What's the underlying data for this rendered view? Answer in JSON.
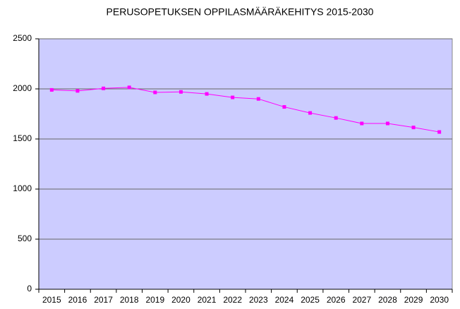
{
  "chart_data": {
    "type": "line",
    "title": "PERUSOPETUKSEN OPPILASMÄÄRÄKEHITYS 2015-2030",
    "categories": [
      "2015",
      "2016",
      "2017",
      "2018",
      "2019",
      "2020",
      "2021",
      "2022",
      "2023",
      "2024",
      "2025",
      "2026",
      "2027",
      "2028",
      "2029",
      "2030"
    ],
    "series": [
      {
        "color": "#ff00ff",
        "values": [
          1990,
          1980,
          2005,
          2015,
          1965,
          1970,
          1950,
          1915,
          1900,
          1820,
          1760,
          1710,
          1655,
          1655,
          1615,
          1570
        ]
      }
    ],
    "ylim": [
      0,
      2500
    ],
    "yticks": [
      0,
      500,
      1000,
      1500,
      2000,
      2500
    ],
    "grid": true,
    "plot_background": "#ccccff"
  }
}
